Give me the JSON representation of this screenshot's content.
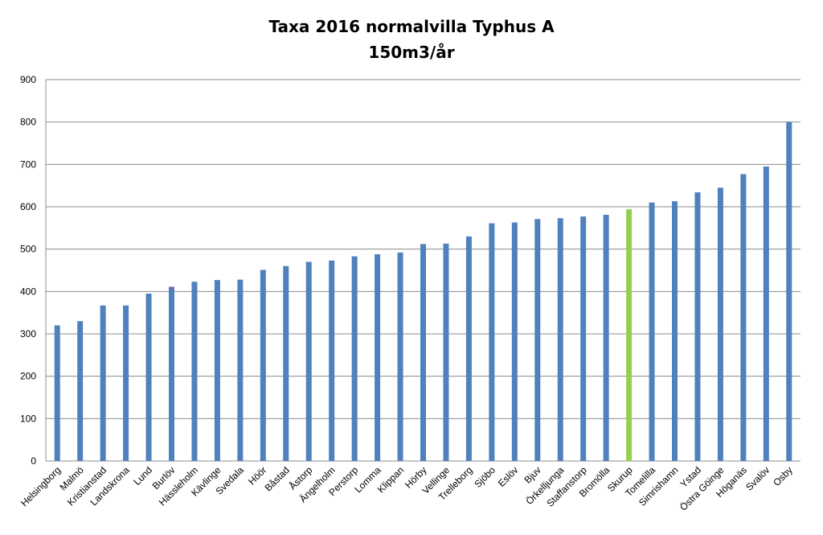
{
  "chart_data": {
    "type": "bar",
    "title": [
      "Taxa 2016 normalvilla Typhus A",
      "150m3/år"
    ],
    "xlabel": "",
    "ylabel": "",
    "ylim": [
      0,
      900
    ],
    "yticks": [
      0,
      100,
      200,
      300,
      400,
      500,
      600,
      700,
      800,
      900
    ],
    "grid": true,
    "legend": "none",
    "colors": {
      "default": "#4F81BD",
      "highlight": "#92D050",
      "outlier": "#8064A2"
    },
    "highlight_category": "Skurup",
    "outlier_category": "Burlöv",
    "categories": [
      "Helsingborg",
      "Malmö",
      "Kristianstad",
      "Landskrona",
      "Lund",
      "Burlöv",
      "Hässleholm",
      "Kävlinge",
      "Svedala",
      "Höör",
      "Båstad",
      "Åstorp",
      "Ängelholm",
      "Perstorp",
      "Lomma",
      "Klippan",
      "Hörby",
      "Vellinge",
      "Trelleborg",
      "Sjöbo",
      "Eslöv",
      "Bjuv",
      "Örkelljunga",
      "Staffanstorp",
      "Bromölla",
      "Skurup",
      "Tomelilla",
      "Simrishamn",
      "Ystad",
      "Östra Göinge",
      "Höganäs",
      "Svalöv",
      "Osby"
    ],
    "values": [
      320,
      330,
      367,
      367,
      395,
      411,
      423,
      427,
      428,
      451,
      460,
      470,
      473,
      483,
      488,
      492,
      512,
      513,
      530,
      561,
      563,
      571,
      573,
      577,
      581,
      594,
      610,
      613,
      634,
      645,
      677,
      695,
      800
    ]
  }
}
